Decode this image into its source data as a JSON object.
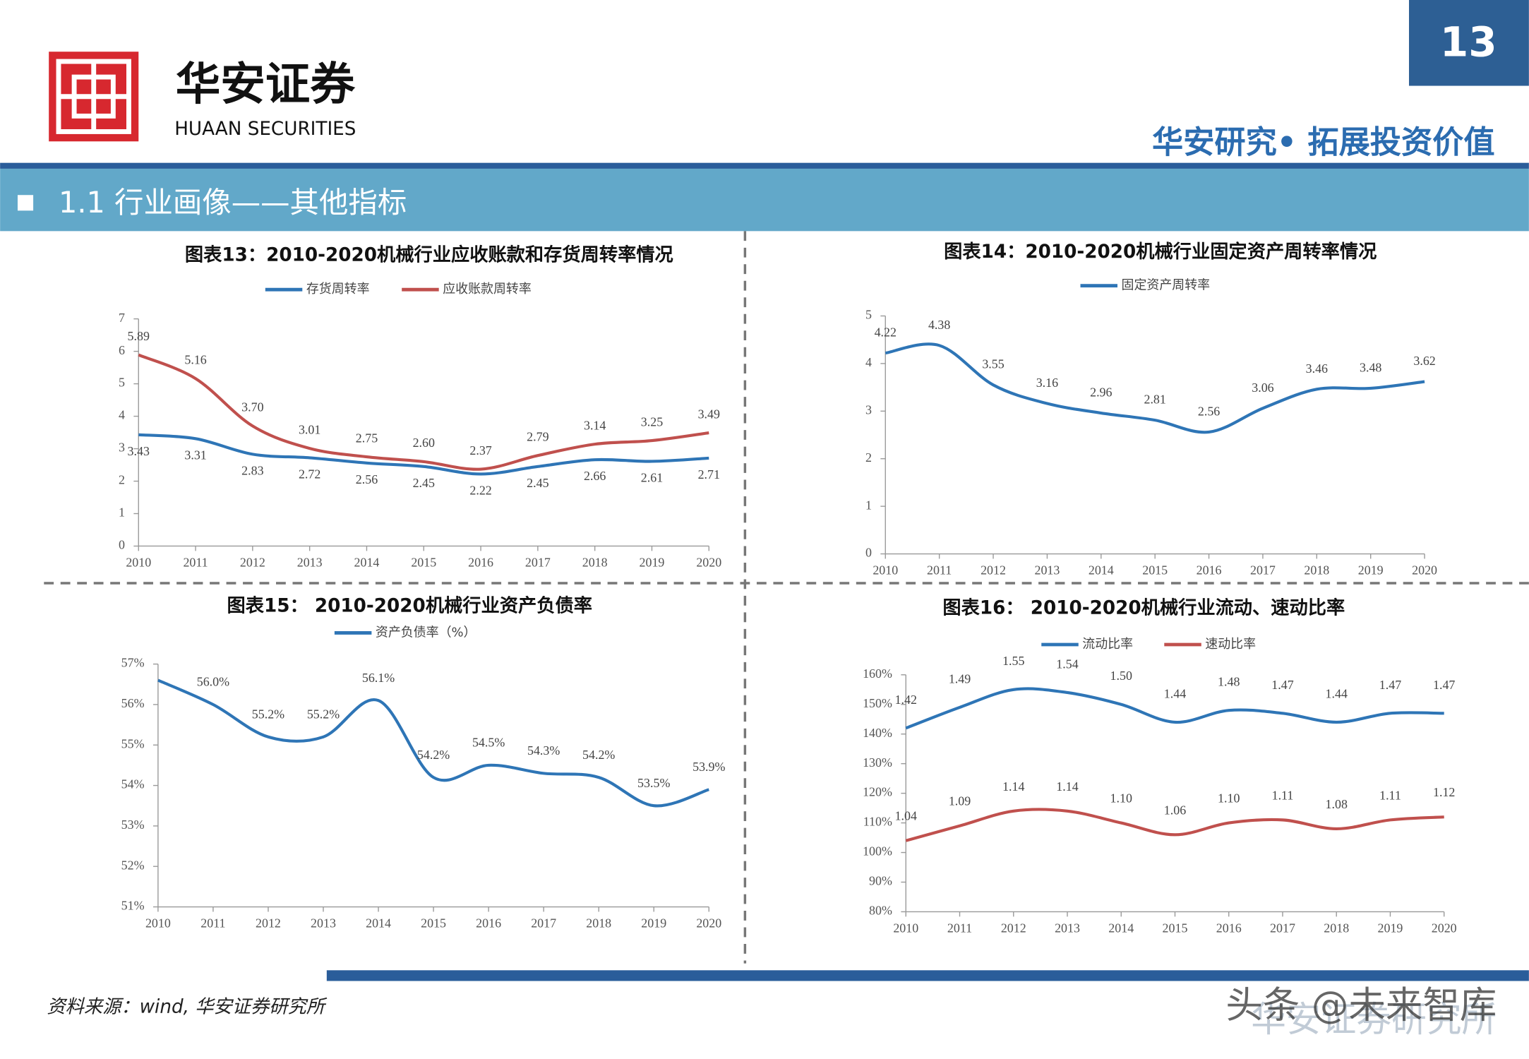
{
  "header": {
    "logo_name": "华安证券",
    "logo_english": "HUAAN SECURITIES",
    "page_number": "13",
    "tagline": "华安研究• 拓展投资价值",
    "section_title": "1.1 行业画像——其他指标"
  },
  "footer": {
    "source": "资料来源：wind, 华安证券研究所",
    "watermark": "头条 @未来智库",
    "watermark_under": "华安证券研究所"
  },
  "chart_data": [
    {
      "type": "line",
      "title": "图表13：2010-2020机械行业应收账款和存货周转率情况",
      "categories": [
        "2010",
        "2011",
        "2012",
        "2013",
        "2014",
        "2015",
        "2016",
        "2017",
        "2018",
        "2019",
        "2020"
      ],
      "series": [
        {
          "name": "存货周转率",
          "color": "#2e75b6",
          "values": [
            3.43,
            3.31,
            2.83,
            2.72,
            2.56,
            2.45,
            2.22,
            2.45,
            2.66,
            2.61,
            2.71
          ],
          "value_labels": [
            "3.43",
            "3.31",
            "2.83",
            "2.72",
            "2.56",
            "2.45",
            "2.22",
            "2.45",
            "2.66",
            "2.61",
            "2.71"
          ]
        },
        {
          "name": "应收账款周转率",
          "color": "#c0504d",
          "values": [
            5.89,
            5.16,
            3.7,
            3.01,
            2.75,
            2.6,
            2.37,
            2.79,
            3.14,
            3.25,
            3.49
          ],
          "value_labels": [
            "5.89",
            "5.16",
            "3.70",
            "3.01",
            "2.75",
            "2.60",
            "2.37",
            "2.79",
            "3.14",
            "3.25",
            "3.49"
          ]
        }
      ],
      "ylim": [
        0,
        7
      ],
      "yticks": [
        0,
        1,
        2,
        3,
        4,
        5,
        6,
        7
      ]
    },
    {
      "type": "line",
      "title": "图表14：2010-2020机械行业固定资产周转率情况",
      "categories": [
        "2010",
        "2011",
        "2012",
        "2013",
        "2014",
        "2015",
        "2016",
        "2017",
        "2018",
        "2019",
        "2020"
      ],
      "series": [
        {
          "name": "固定资产周转率",
          "color": "#2e75b6",
          "values": [
            4.22,
            4.38,
            3.55,
            3.16,
            2.96,
            2.81,
            2.56,
            3.06,
            3.46,
            3.48,
            3.62
          ],
          "value_labels": [
            "4.22",
            "4.38",
            "3.55",
            "3.16",
            "2.96",
            "2.81",
            "2.56",
            "3.06",
            "3.46",
            "3.48",
            "3.62"
          ]
        }
      ],
      "ylim": [
        0,
        5
      ],
      "yticks": [
        0,
        1,
        2,
        3,
        4,
        5
      ]
    },
    {
      "type": "line",
      "title": "图表15： 2010-2020机械行业资产负债率",
      "categories": [
        "2010",
        "2011",
        "2012",
        "2013",
        "2014",
        "2015",
        "2016",
        "2017",
        "2018",
        "2019",
        "2020"
      ],
      "series": [
        {
          "name": "资产负债率（%）",
          "color": "#2e75b6",
          "values": [
            56.6,
            56.0,
            55.2,
            55.2,
            56.1,
            54.2,
            54.5,
            54.3,
            54.2,
            53.5,
            53.9
          ],
          "value_labels": [
            null,
            "56.0%",
            "55.2%",
            "55.2%",
            "56.1%",
            "54.2%",
            "54.5%",
            "54.3%",
            "54.2%",
            "53.5%",
            "53.9%"
          ]
        }
      ],
      "ylim": [
        51,
        57
      ],
      "yticks": [
        {
          "value": 51,
          "label": "51%"
        },
        {
          "value": 52,
          "label": "52%"
        },
        {
          "value": 53,
          "label": "53%"
        },
        {
          "value": 54,
          "label": "54%"
        },
        {
          "value": 55,
          "label": "55%"
        },
        {
          "value": 56,
          "label": "56%"
        },
        {
          "value": 57,
          "label": "57%"
        }
      ]
    },
    {
      "type": "line",
      "title": "图表16： 2010-2020机械行业流动、速动比率",
      "categories": [
        "2010",
        "2011",
        "2012",
        "2013",
        "2014",
        "2015",
        "2016",
        "2017",
        "2018",
        "2019",
        "2020"
      ],
      "series": [
        {
          "name": "流动比率",
          "color": "#2e75b6",
          "values": [
            142,
            149,
            155,
            154,
            150,
            144,
            148,
            147,
            144,
            147,
            147
          ],
          "value_labels": [
            "1.42",
            "1.49",
            "1.55",
            "1.54",
            "1.50",
            "1.44",
            "1.48",
            "1.47",
            "1.44",
            "1.47",
            "1.47"
          ]
        },
        {
          "name": "速动比率",
          "color": "#c0504d",
          "values": [
            104,
            109,
            114,
            114,
            110,
            106,
            110,
            111,
            108,
            111,
            112
          ],
          "value_labels": [
            "1.04",
            "1.09",
            "1.14",
            "1.14",
            "1.10",
            "1.06",
            "1.10",
            "1.11",
            "1.08",
            "1.11",
            "1.12"
          ]
        }
      ],
      "ylim": [
        80,
        160
      ],
      "yticks": [
        {
          "value": 80,
          "label": "80%"
        },
        {
          "value": 90,
          "label": "90%"
        },
        {
          "value": 100,
          "label": "100%"
        },
        {
          "value": 110,
          "label": "110%"
        },
        {
          "value": 120,
          "label": "120%"
        },
        {
          "value": 130,
          "label": "130%"
        },
        {
          "value": 140,
          "label": "140%"
        },
        {
          "value": 150,
          "label": "150%"
        },
        {
          "value": 160,
          "label": "160%"
        }
      ]
    }
  ]
}
